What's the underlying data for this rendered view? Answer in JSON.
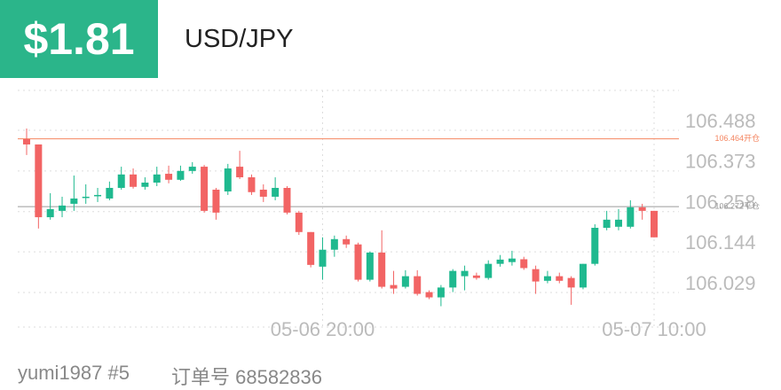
{
  "header": {
    "amount": "$1.81",
    "symbol": "USD/JPY"
  },
  "footer": {
    "user": "yumi1987 #5",
    "order": "订单号 68582836"
  },
  "chart_data": {
    "type": "candlestick",
    "categories": [
      null,
      null,
      null,
      null,
      null,
      null,
      null,
      null,
      null,
      null,
      null,
      null,
      null,
      null,
      null,
      null,
      null,
      null,
      null,
      null,
      null,
      null,
      null,
      null,
      null,
      "05-06 20:00",
      null,
      null,
      null,
      null,
      null,
      null,
      null,
      null,
      null,
      null,
      null,
      null,
      null,
      null,
      null,
      null,
      null,
      null,
      null,
      null,
      null,
      null,
      null,
      null,
      null,
      null,
      null,
      "05-07 10:00"
    ],
    "open": [
      106.463,
      106.448,
      106.242,
      106.26,
      106.28,
      106.298,
      106.303,
      106.295,
      106.325,
      106.363,
      106.328,
      106.34,
      106.365,
      106.348,
      106.373,
      106.385,
      106.32,
      106.315,
      106.385,
      106.355,
      106.32,
      106.3,
      106.325,
      106.255,
      106.2,
      106.102,
      106.15,
      106.18,
      106.165,
      106.065,
      106.142,
      106.05,
      106.045,
      106.075,
      106.03,
      106.015,
      106.043,
      106.075,
      106.077,
      106.07,
      106.11,
      106.115,
      106.123,
      106.095,
      106.062,
      106.075,
      106.07,
      106.043,
      106.11,
      106.212,
      106.215,
      106.215,
      106.27,
      106.26
    ],
    "high": [
      106.493,
      106.448,
      106.31,
      106.3,
      106.36,
      106.335,
      106.325,
      106.343,
      106.385,
      106.38,
      106.355,
      106.385,
      106.388,
      106.388,
      106.398,
      106.39,
      106.325,
      106.393,
      106.43,
      106.363,
      106.335,
      106.355,
      106.33,
      106.26,
      106.2,
      106.185,
      106.19,
      106.19,
      106.17,
      106.145,
      106.205,
      106.09,
      106.092,
      106.092,
      106.035,
      106.05,
      106.095,
      106.105,
      106.085,
      106.12,
      106.135,
      106.147,
      106.13,
      106.105,
      106.09,
      106.085,
      106.075,
      106.11,
      106.222,
      106.26,
      106.265,
      106.29,
      106.28,
      106.26
    ],
    "low": [
      106.418,
      106.21,
      106.235,
      106.242,
      106.26,
      106.28,
      106.285,
      106.29,
      106.32,
      106.323,
      106.32,
      106.33,
      106.338,
      106.345,
      106.365,
      106.255,
      106.235,
      106.305,
      106.35,
      106.305,
      106.285,
      106.29,
      106.25,
      106.192,
      106.1,
      106.065,
      106.13,
      106.155,
      106.06,
      106.06,
      106.04,
      106.025,
      106.04,
      106.02,
      106.01,
      105.99,
      106.03,
      106.035,
      106.065,
      106.065,
      106.102,
      106.105,
      106.093,
      106.025,
      106.055,
      106.055,
      105.994,
      106.038,
      106.105,
      106.205,
      106.205,
      106.21,
      106.235,
      106.185
    ],
    "close": [
      106.448,
      106.242,
      106.265,
      106.275,
      106.295,
      106.3,
      106.305,
      106.325,
      106.363,
      106.328,
      106.34,
      106.363,
      106.348,
      106.373,
      106.385,
      106.26,
      106.255,
      106.38,
      106.355,
      106.313,
      106.3,
      106.325,
      106.255,
      106.2,
      106.107,
      106.15,
      106.18,
      106.165,
      106.065,
      106.142,
      106.045,
      106.04,
      106.075,
      106.025,
      106.015,
      106.043,
      106.09,
      106.09,
      106.07,
      106.11,
      106.122,
      106.125,
      106.098,
      106.06,
      106.075,
      106.062,
      106.043,
      106.11,
      106.212,
      106.235,
      106.235,
      106.27,
      106.26,
      106.185
    ],
    "up_color": "#1fb98f",
    "down_color": "#f26464",
    "ylim": [
      105.931,
      106.601
    ],
    "yticks": [
      106.029,
      106.144,
      106.258,
      106.373,
      106.488
    ],
    "grid": true,
    "reference_lines": [
      {
        "value": 106.464,
        "label": "106.464开仓",
        "color": "#f4845f"
      },
      {
        "value": 106.272,
        "label": "106.272平仓",
        "color": "#9a9a9a"
      }
    ]
  }
}
